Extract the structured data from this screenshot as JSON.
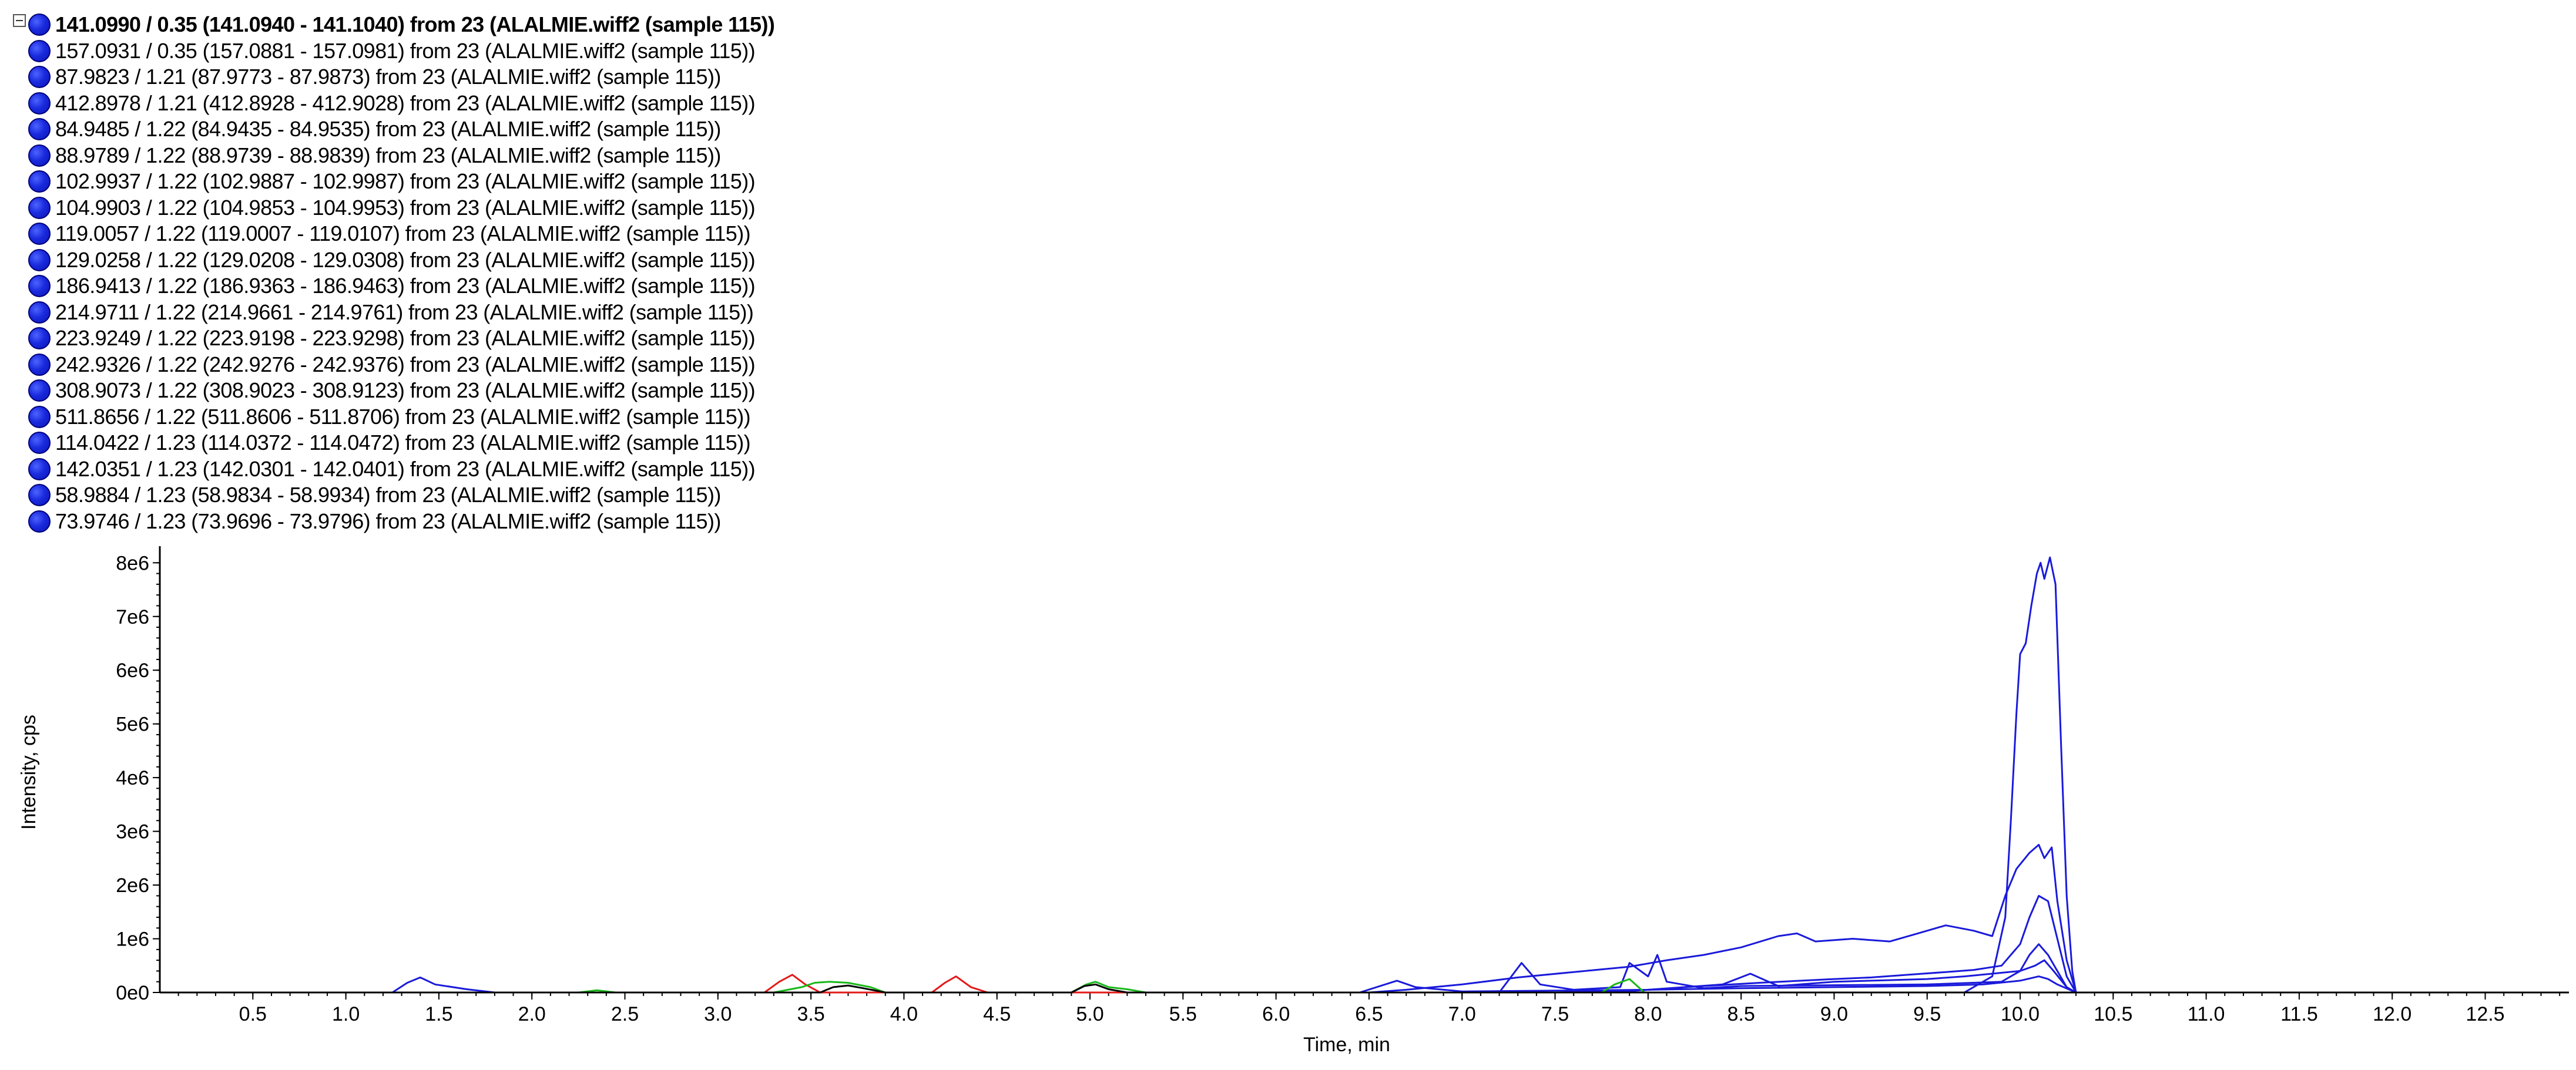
{
  "legend": {
    "items": [
      {
        "label": "141.0990 / 0.35 (141.0940 - 141.1040) from 23 (ALALMIE.wiff2 (sample 115))",
        "expanded": true
      },
      {
        "label": "157.0931 / 0.35 (157.0881 - 157.0981) from 23 (ALALMIE.wiff2 (sample 115))"
      },
      {
        "label": "87.9823 / 1.21 (87.9773 - 87.9873) from 23 (ALALMIE.wiff2 (sample 115))"
      },
      {
        "label": "412.8978 / 1.21 (412.8928 - 412.9028) from 23 (ALALMIE.wiff2 (sample 115))"
      },
      {
        "label": "84.9485 / 1.22 (84.9435 - 84.9535) from 23 (ALALMIE.wiff2 (sample 115))"
      },
      {
        "label": "88.9789 / 1.22 (88.9739 - 88.9839) from 23 (ALALMIE.wiff2 (sample 115))"
      },
      {
        "label": "102.9937 / 1.22 (102.9887 - 102.9987) from 23 (ALALMIE.wiff2 (sample 115))"
      },
      {
        "label": "104.9903 / 1.22 (104.9853 - 104.9953) from 23 (ALALMIE.wiff2 (sample 115))"
      },
      {
        "label": "119.0057 / 1.22 (119.0007 - 119.0107) from 23 (ALALMIE.wiff2 (sample 115))"
      },
      {
        "label": "129.0258 / 1.22 (129.0208 - 129.0308) from 23 (ALALMIE.wiff2 (sample 115))"
      },
      {
        "label": "186.9413 / 1.22 (186.9363 - 186.9463) from 23 (ALALMIE.wiff2 (sample 115))"
      },
      {
        "label": "214.9711 / 1.22 (214.9661 - 214.9761) from 23 (ALALMIE.wiff2 (sample 115))"
      },
      {
        "label": "223.9249 / 1.22 (223.9198 - 223.9298) from 23 (ALALMIE.wiff2 (sample 115))"
      },
      {
        "label": "242.9326 / 1.22 (242.9276 - 242.9376) from 23 (ALALMIE.wiff2 (sample 115))"
      },
      {
        "label": "308.9073 / 1.22 (308.9023 - 308.9123) from 23 (ALALMIE.wiff2 (sample 115))"
      },
      {
        "label": "511.8656 / 1.22 (511.8606 - 511.8706) from 23 (ALALMIE.wiff2 (sample 115))"
      },
      {
        "label": "114.0422 / 1.23 (114.0372 - 114.0472) from 23 (ALALMIE.wiff2 (sample 115))"
      },
      {
        "label": "142.0351 / 1.23 (142.0301 - 142.0401) from 23 (ALALMIE.wiff2 (sample 115))"
      },
      {
        "label": "58.9884 / 1.23 (58.9834 - 58.9934) from 23 (ALALMIE.wiff2 (sample 115))"
      },
      {
        "label": "73.9746 / 1.23 (73.9696 - 73.9796) from 23 (ALALMIE.wiff2 (sample 115))"
      }
    ],
    "dot_color": "#1a2bdd",
    "icon": "circle-marker-icon"
  },
  "chart_data": {
    "type": "line",
    "title": "",
    "xlabel": "Time, min",
    "ylabel": "Intensity, cps",
    "xlim": [
      0,
      12.95
    ],
    "ylim": [
      0,
      8200000
    ],
    "x_ticks": [
      0.5,
      1.0,
      1.5,
      2.0,
      2.5,
      3.0,
      3.5,
      4.0,
      4.5,
      5.0,
      5.5,
      6.0,
      6.5,
      7.0,
      7.5,
      8.0,
      8.5,
      9.0,
      9.5,
      10.0,
      10.5,
      11.0,
      11.5,
      12.0,
      12.5
    ],
    "x_tick_labels": [
      "0.5",
      "1.0",
      "1.5",
      "2.0",
      "2.5",
      "3.0",
      "3.5",
      "4.0",
      "4.5",
      "5.0",
      "5.5",
      "6.0",
      "6.5",
      "7.0",
      "7.5",
      "8.0",
      "8.5",
      "9.0",
      "9.5",
      "10.0",
      "10.5",
      "11.0",
      "11.5",
      "12.0",
      "12.5"
    ],
    "y_ticks": [
      0,
      1000000,
      2000000,
      3000000,
      4000000,
      5000000,
      6000000,
      7000000,
      8000000
    ],
    "y_tick_labels": [
      "0e0",
      "1e6",
      "2e6",
      "3e6",
      "4e6",
      "5e6",
      "6e6",
      "7e6",
      "8e6"
    ],
    "grid": false,
    "legend_position": "top",
    "series": [
      {
        "color": "#1a1adb",
        "x": [
          0,
          1.25,
          1.33,
          1.4,
          1.48,
          1.65,
          1.8,
          2.5,
          3.0,
          3.5,
          4.0,
          4.5,
          5.0,
          5.5,
          6.0,
          6.5,
          7.0,
          7.5,
          8.0,
          8.5,
          9.0,
          9.5,
          9.7,
          9.85,
          9.92,
          9.95,
          9.98,
          10.0,
          10.03,
          10.06,
          10.09,
          10.11,
          10.13,
          10.16,
          10.19,
          10.22,
          10.25,
          10.28,
          10.3,
          10.5,
          11,
          12.95
        ],
        "y": [
          0,
          0,
          180000,
          280000,
          150000,
          60000,
          0,
          0,
          0,
          0,
          0,
          0,
          0,
          0,
          0,
          0,
          0,
          0,
          0,
          0,
          0,
          0,
          0,
          300000,
          1400000,
          3200000,
          5200000,
          6300000,
          6500000,
          7200000,
          7800000,
          8000000,
          7700000,
          8100000,
          7600000,
          4600000,
          1800000,
          400000,
          0,
          0,
          0,
          0
        ]
      },
      {
        "color": "#1a1adb",
        "x": [
          0,
          6.5,
          6.7,
          7.0,
          7.3,
          7.6,
          7.9,
          8.1,
          8.3,
          8.5,
          8.7,
          8.8,
          8.9,
          9.1,
          9.3,
          9.45,
          9.6,
          9.75,
          9.85,
          9.92,
          9.98,
          10.05,
          10.1,
          10.13,
          10.17,
          10.2,
          10.25,
          10.3,
          10.5,
          12.95
        ],
        "y": [
          0,
          0,
          50000,
          150000,
          280000,
          380000,
          480000,
          600000,
          700000,
          840000,
          1050000,
          1100000,
          950000,
          1000000,
          950000,
          1100000,
          1250000,
          1150000,
          1050000,
          1800000,
          2300000,
          2600000,
          2750000,
          2500000,
          2700000,
          1700000,
          600000,
          0,
          0,
          0
        ]
      },
      {
        "color": "#1a1adb",
        "x": [
          0,
          7.8,
          8.2,
          8.6,
          9.0,
          9.2,
          9.4,
          9.6,
          9.75,
          9.9,
          10.0,
          10.05,
          10.1,
          10.15,
          10.2,
          10.25,
          10.3,
          12.95
        ],
        "y": [
          0,
          0,
          100000,
          180000,
          250000,
          280000,
          330000,
          380000,
          420000,
          500000,
          900000,
          1400000,
          1800000,
          1700000,
          1000000,
          300000,
          0,
          0
        ]
      },
      {
        "color": "#1a1adb",
        "x": [
          0,
          7.2,
          7.32,
          7.42,
          7.6,
          7.85,
          7.9,
          8.0,
          8.05,
          8.1,
          8.3,
          8.5,
          9.5,
          9.9,
          10.0,
          10.05,
          10.1,
          10.15,
          10.2,
          10.25,
          10.3,
          12.95
        ],
        "y": [
          0,
          0,
          550000,
          150000,
          50000,
          100000,
          550000,
          300000,
          700000,
          200000,
          80000,
          120000,
          150000,
          200000,
          400000,
          700000,
          900000,
          700000,
          400000,
          100000,
          0,
          0
        ]
      },
      {
        "color": "#1a1adb",
        "x": [
          0,
          6.45,
          6.65,
          6.75,
          7.0,
          8.0,
          8.4,
          8.55,
          8.7,
          9.0,
          9.3,
          9.5,
          9.7,
          10.0,
          10.08,
          10.13,
          10.18,
          10.25,
          10.3,
          12.95
        ],
        "y": [
          0,
          0,
          220000,
          100000,
          20000,
          50000,
          150000,
          350000,
          120000,
          200000,
          230000,
          250000,
          300000,
          400000,
          500000,
          600000,
          400000,
          100000,
          0,
          0
        ]
      },
      {
        "color": "#1a1adb",
        "x": [
          0,
          7.5,
          8.0,
          8.5,
          9.0,
          9.5,
          9.8,
          10.0,
          10.1,
          10.15,
          10.2,
          10.3,
          12.95
        ],
        "y": [
          0,
          0,
          50000,
          80000,
          100000,
          120000,
          150000,
          220000,
          300000,
          250000,
          150000,
          0,
          0
        ]
      },
      {
        "color": "#e31a1a",
        "x": [
          0,
          3.25,
          3.33,
          3.4,
          3.47,
          3.55,
          4.15,
          4.22,
          4.28,
          4.36,
          4.45,
          12.95
        ],
        "y": [
          0,
          0,
          200000,
          330000,
          150000,
          0,
          0,
          180000,
          300000,
          100000,
          0,
          0
        ]
      },
      {
        "color": "#18b818",
        "x": [
          0,
          2.25,
          2.35,
          2.45,
          3.3,
          3.45,
          3.52,
          3.6,
          3.7,
          3.82,
          3.9,
          4.9,
          4.98,
          5.03,
          5.1,
          5.2,
          5.3,
          7.75,
          7.82,
          7.9,
          7.98,
          12.95
        ],
        "y": [
          0,
          0,
          40000,
          0,
          0,
          100000,
          180000,
          200000,
          180000,
          100000,
          0,
          0,
          150000,
          200000,
          100000,
          60000,
          0,
          0,
          150000,
          250000,
          0,
          0
        ]
      },
      {
        "color": "#000000",
        "x": [
          0,
          3.55,
          3.62,
          3.7,
          3.78,
          3.9,
          4.9,
          4.97,
          5.03,
          5.1,
          5.2,
          12.95
        ],
        "y": [
          0,
          0,
          100000,
          130000,
          80000,
          0,
          0,
          120000,
          150000,
          60000,
          0,
          0
        ]
      }
    ]
  }
}
